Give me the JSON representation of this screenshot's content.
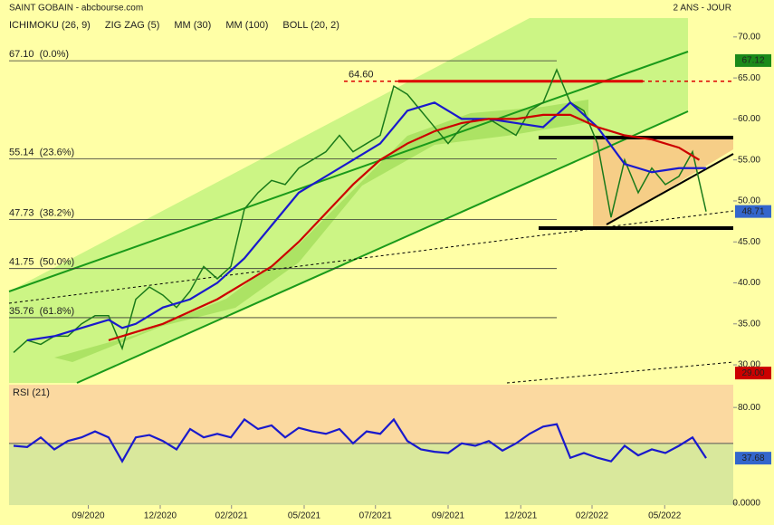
{
  "header": {
    "title": "SAINT GOBAIN - abcbourse.com",
    "period": "2 ANS - JOUR"
  },
  "legend": [
    {
      "label": "ICHIMOKU (26, 9)",
      "color": "#cc0000"
    },
    {
      "label": "ZIG ZAG (5)",
      "color": "#000000"
    },
    {
      "label": "MM (30)",
      "color": "#1a1acc"
    },
    {
      "label": "MM (100)",
      "color": "#cc0000"
    },
    {
      "label": "BOLL (20, 2)",
      "color": "#3355cc"
    }
  ],
  "chart_data": [
    {
      "type": "line",
      "xlim": [
        0,
        114
      ],
      "ylim": [
        27.8,
        72.3
      ],
      "yticks": [
        {
          "value": 70,
          "label": "70.00"
        },
        {
          "value": 65,
          "label": "65.00"
        },
        {
          "value": 60,
          "label": "60.00"
        },
        {
          "value": 55,
          "label": "55.00"
        },
        {
          "value": 50,
          "label": "50.00"
        },
        {
          "value": 45,
          "label": "45.00"
        },
        {
          "value": 40,
          "label": "40.00"
        },
        {
          "value": 35,
          "label": "35.00"
        },
        {
          "value": 30,
          "label": "30.00"
        }
      ],
      "series": [
        {
          "name": "Cours",
          "color": "#1a7a1a",
          "x": [
            2,
            4,
            6,
            8,
            10,
            12,
            14,
            16,
            18,
            20,
            22,
            24,
            26,
            28,
            30,
            32,
            34,
            36,
            38,
            40,
            42,
            44,
            46,
            48,
            50,
            52,
            54,
            56,
            58,
            60,
            62,
            64,
            66,
            68,
            70,
            72,
            74,
            76,
            78,
            80,
            82,
            84,
            86,
            88,
            90,
            92,
            94,
            96,
            98,
            100,
            102,
            104
          ],
          "values": [
            31.5,
            33,
            32.5,
            33.5,
            33.5,
            35,
            36,
            36,
            32,
            38,
            39.5,
            38.5,
            37,
            39,
            42,
            40.5,
            42,
            49,
            51,
            52.5,
            52,
            54,
            55,
            56,
            58,
            56,
            57,
            58,
            64,
            63,
            61,
            59,
            57,
            59,
            60,
            60,
            59,
            58,
            61,
            62,
            66,
            62,
            61,
            57,
            48,
            55,
            51,
            54,
            52,
            53,
            56,
            48.7
          ]
        },
        {
          "name": "MM (30)",
          "color": "#1a1acc",
          "x": [
            4,
            8,
            12,
            16,
            18,
            20,
            24,
            28,
            32,
            36,
            40,
            44,
            48,
            52,
            56,
            60,
            64,
            68,
            72,
            76,
            80,
            84,
            88,
            92,
            96,
            100,
            104
          ],
          "values": [
            33,
            33.5,
            34.5,
            35.5,
            34.5,
            35,
            37,
            38,
            40,
            43,
            47,
            51,
            53,
            55,
            57,
            61,
            62,
            60,
            60,
            59.5,
            59,
            62,
            59,
            54.5,
            53.5,
            54,
            54
          ]
        },
        {
          "name": "MM (100)",
          "color": "#cc0000",
          "x": [
            16,
            20,
            24,
            28,
            32,
            36,
            40,
            44,
            48,
            52,
            56,
            60,
            64,
            68,
            72,
            76,
            80,
            84,
            88,
            92,
            96,
            100,
            103
          ],
          "values": [
            33,
            34,
            35,
            36.5,
            38,
            40,
            42,
            45,
            48.5,
            52,
            55,
            57,
            58.5,
            59.5,
            60,
            60,
            60.5,
            60.5,
            59,
            58,
            57.5,
            56.5,
            55
          ]
        }
      ],
      "fibonacci": [
        {
          "label": "67.10  (0.0%)",
          "value": 67.1
        },
        {
          "label": "55.14  (23.6%)",
          "value": 55.14
        },
        {
          "label": "47.73  (38.2%)",
          "value": 47.73
        },
        {
          "label": "41.75  (50.0%)",
          "value": 41.75
        },
        {
          "label": "35.76  (61.8%)",
          "value": 35.76
        }
      ],
      "annotation": {
        "label": "64.60",
        "value": 64.6
      },
      "tags": [
        {
          "value": 67.12,
          "label": "67.12",
          "color": "#1a8a1a"
        },
        {
          "value": 48.71,
          "label": "48.71",
          "color": "#3366cc"
        },
        {
          "value": 29,
          "label": "29.00",
          "color": "#cc0000"
        }
      ]
    },
    {
      "type": "line",
      "title": "RSI (21)",
      "xlim": [
        0,
        114
      ],
      "ylim": [
        -1.5,
        99
      ],
      "yticks": [
        {
          "value": 80,
          "label": "80.00"
        },
        {
          "value": 0,
          "label": "0.0000"
        }
      ],
      "xticks": [
        {
          "value": 13,
          "label": "09/2020"
        },
        {
          "value": 23.6,
          "label": "12/2020"
        },
        {
          "value": 34.1,
          "label": "02/2021"
        },
        {
          "value": 44.8,
          "label": "05/2021"
        },
        {
          "value": 55.3,
          "label": "07/2021"
        },
        {
          "value": 66,
          "label": "09/2021"
        },
        {
          "value": 76.7,
          "label": "12/2021"
        },
        {
          "value": 87.2,
          "label": "02/2022"
        },
        {
          "value": 97.9,
          "label": "05/2022"
        }
      ],
      "series": [
        {
          "name": "RSI",
          "color": "#1a1acc",
          "x": [
            2,
            4,
            6,
            8,
            10,
            12,
            14,
            16,
            18,
            20,
            22,
            24,
            26,
            28,
            30,
            32,
            34,
            36,
            38,
            40,
            42,
            44,
            46,
            48,
            50,
            52,
            54,
            56,
            58,
            60,
            62,
            64,
            66,
            68,
            70,
            72,
            74,
            76,
            78,
            80,
            82,
            84,
            86,
            88,
            90,
            92,
            94,
            96,
            98,
            100,
            102,
            104
          ],
          "values": [
            48,
            47,
            55,
            45,
            52,
            55,
            60,
            55,
            35,
            55,
            57,
            52,
            45,
            62,
            55,
            58,
            55,
            70,
            62,
            65,
            55,
            63,
            60,
            58,
            62,
            50,
            60,
            58,
            70,
            52,
            45,
            43,
            42,
            50,
            48,
            52,
            44,
            50,
            58,
            64,
            66,
            38,
            42,
            38,
            35,
            48,
            40,
            45,
            42,
            48,
            55,
            37.68
          ]
        }
      ],
      "tag": {
        "value": 37.68,
        "label": "37.68",
        "color": "#3366cc"
      }
    }
  ]
}
